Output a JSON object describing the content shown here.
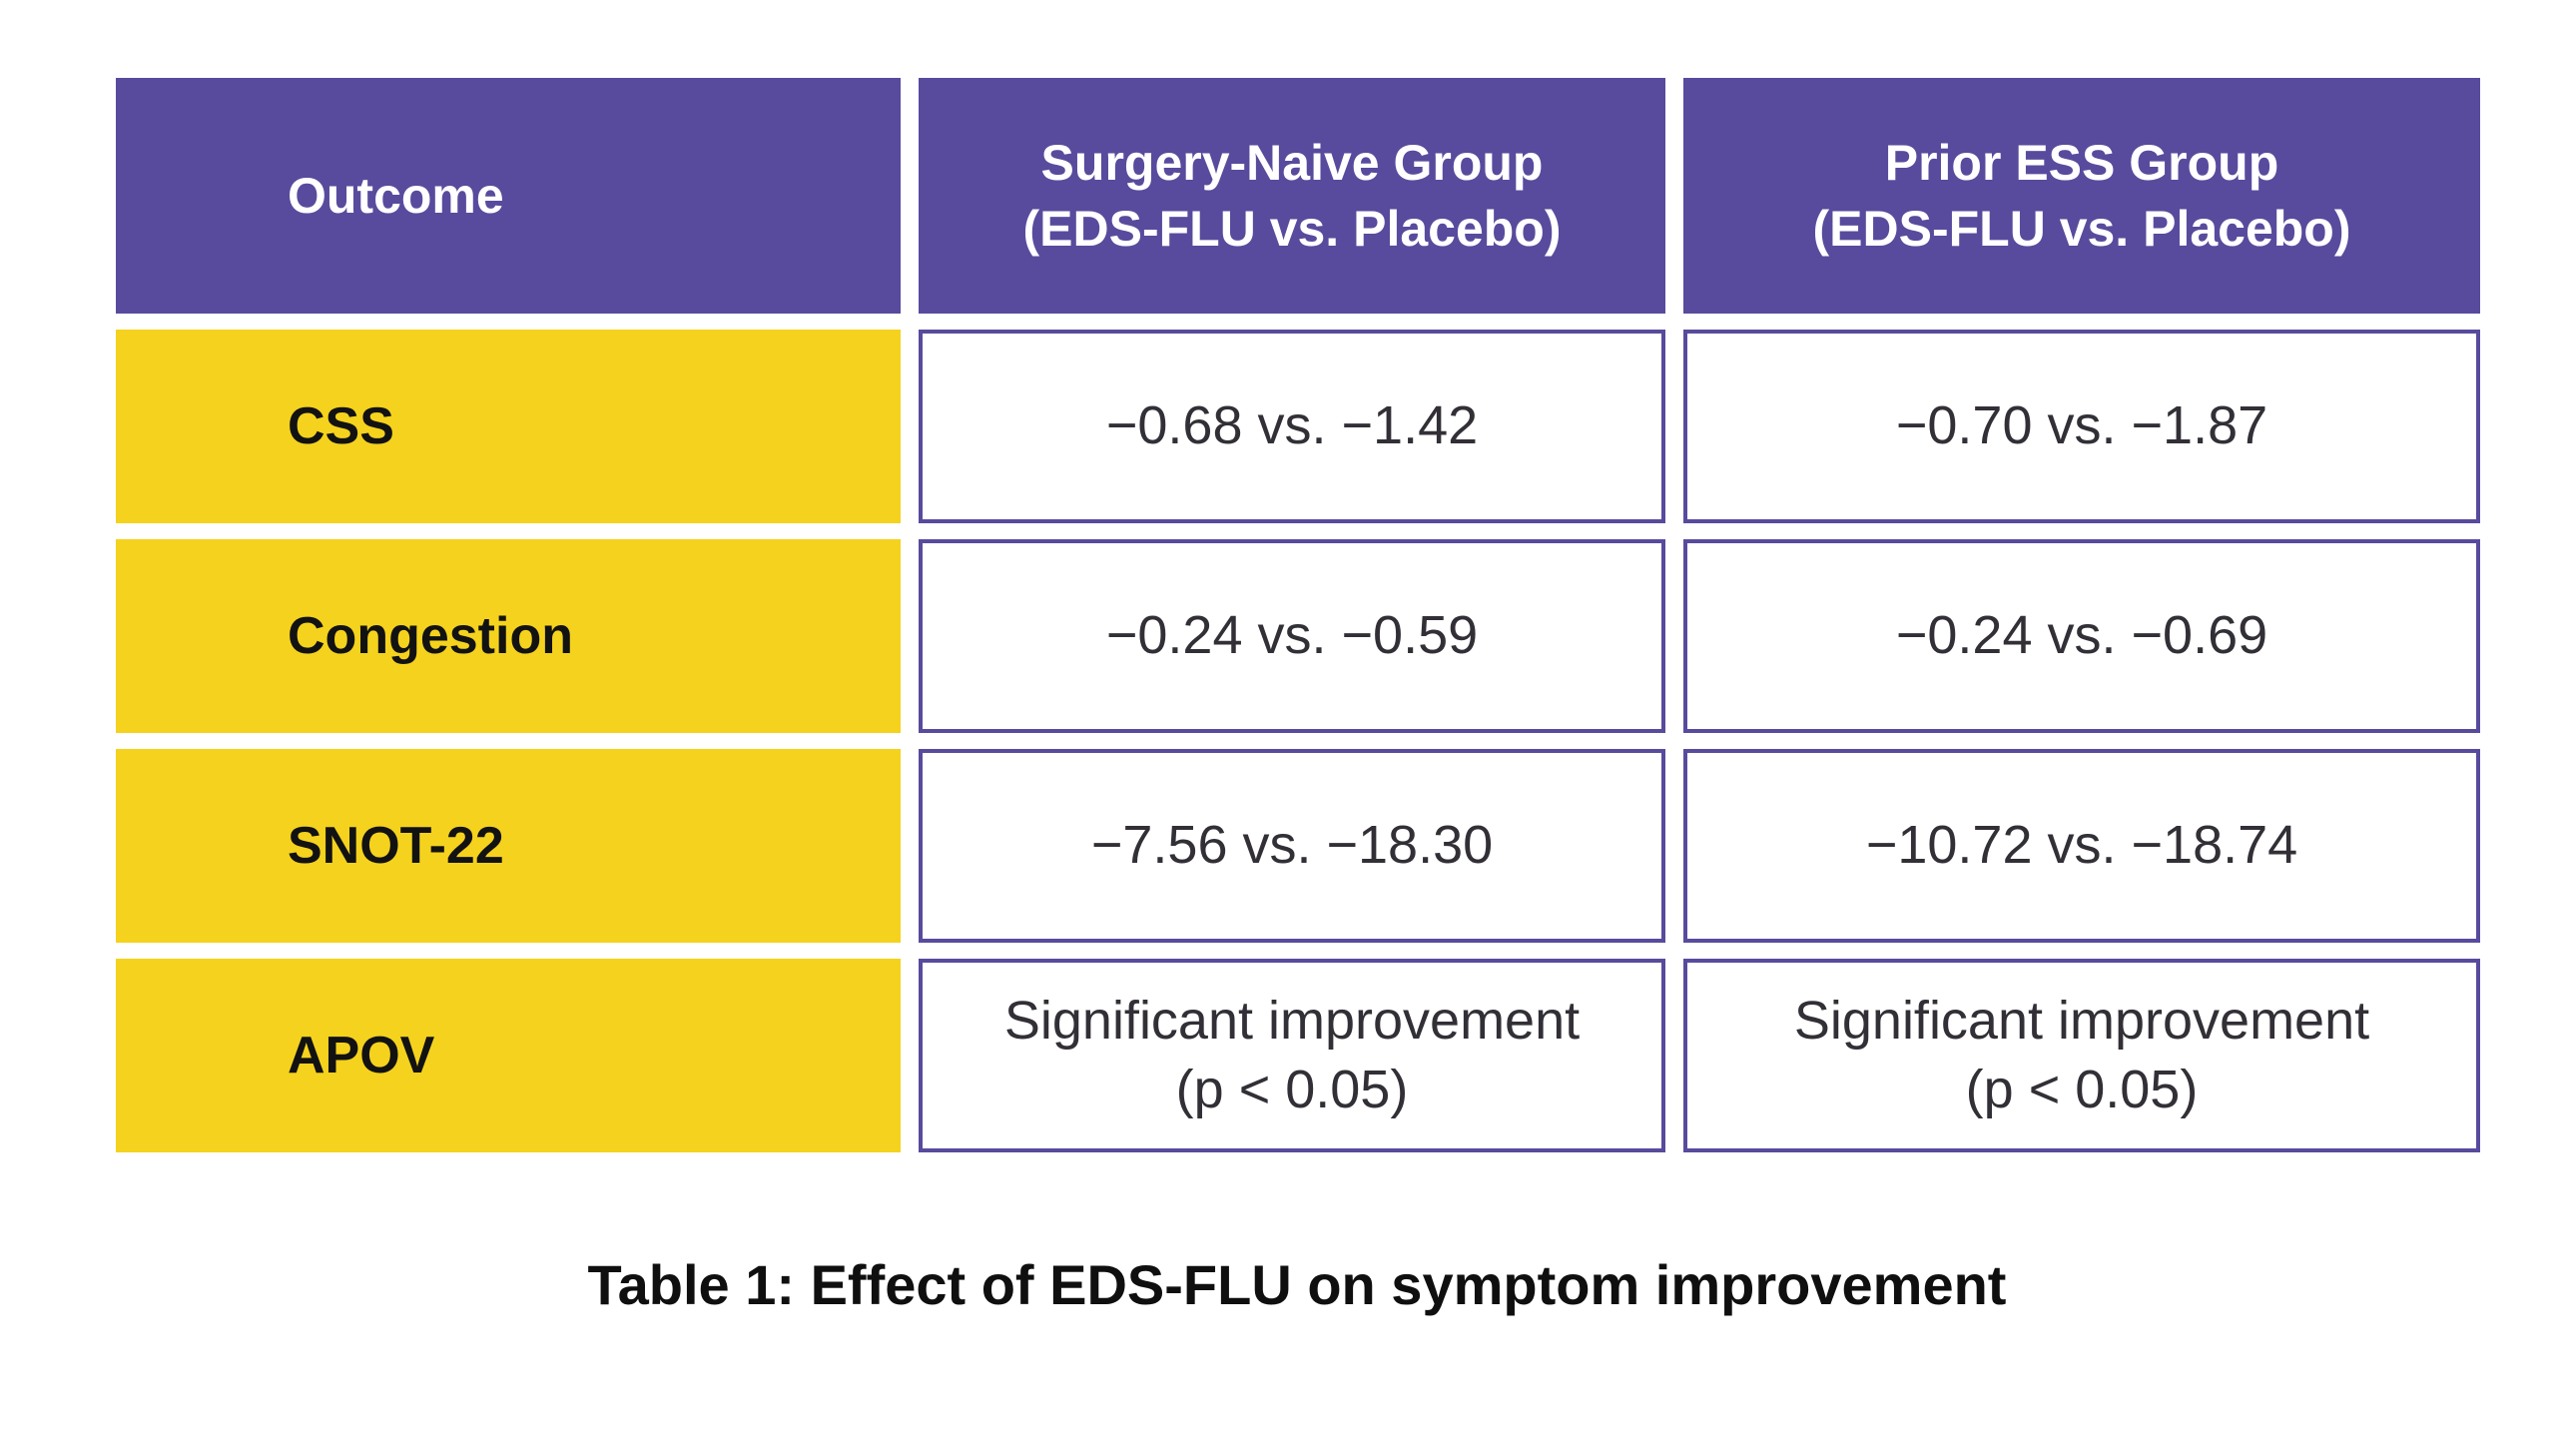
{
  "caption": "Table 1: Effect of EDS-FLU on symptom improvement",
  "colors": {
    "header_bg": "#584b9d",
    "header_text": "#ffffff",
    "row_label_bg": "#f5d21d",
    "row_label_text": "#121212",
    "value_cell_border": "#584b9d",
    "value_cell_bg": "#ffffff",
    "value_text": "#332f36",
    "caption_text": "#0f0f0f"
  },
  "header": {
    "outcome": {
      "line1": "Outcome",
      "line2": ""
    },
    "surgery_naive": {
      "line1": "Surgery-Naive Group",
      "line2": "(EDS-FLU vs. Placebo)"
    },
    "prior_ess": {
      "line1": "Prior ESS Group",
      "line2": "(EDS-FLU vs. Placebo)"
    }
  },
  "rows": [
    {
      "label": "CSS",
      "surgery_naive": {
        "line1": "−0.68 vs. −1.42",
        "line2": ""
      },
      "prior_ess": {
        "line1": "−0.70 vs. −1.87",
        "line2": ""
      }
    },
    {
      "label": "Congestion",
      "surgery_naive": {
        "line1": "−0.24 vs. −0.59",
        "line2": ""
      },
      "prior_ess": {
        "line1": "−0.24 vs. −0.69",
        "line2": ""
      }
    },
    {
      "label": "SNOT-22",
      "surgery_naive": {
        "line1": "−7.56 vs. −18.30",
        "line2": ""
      },
      "prior_ess": {
        "line1": "−10.72 vs. −18.74",
        "line2": ""
      }
    },
    {
      "label": "APOV",
      "surgery_naive": {
        "line1": "Significant improvement",
        "line2": "(p < 0.05)"
      },
      "prior_ess": {
        "line1": "Significant improvement",
        "line2": "(p < 0.05)"
      }
    }
  ],
  "chart_data": {
    "type": "table",
    "title": "Table 1: Effect of EDS-FLU on symptom improvement",
    "columns": [
      "Outcome",
      "Surgery-Naive Group (EDS-FLU vs. Placebo)",
      "Prior ESS Group (EDS-FLU vs. Placebo)"
    ],
    "rows": [
      [
        "CSS",
        "−0.68 vs. −1.42",
        "−0.70 vs. −1.87"
      ],
      [
        "Congestion",
        "−0.24 vs. −0.59",
        "−0.24 vs. −0.69"
      ],
      [
        "SNOT-22",
        "−7.56 vs. −18.30",
        "−10.72 vs. −18.74"
      ],
      [
        "APOV",
        "Significant improvement (p < 0.05)",
        "Significant improvement (p < 0.05)"
      ]
    ]
  }
}
